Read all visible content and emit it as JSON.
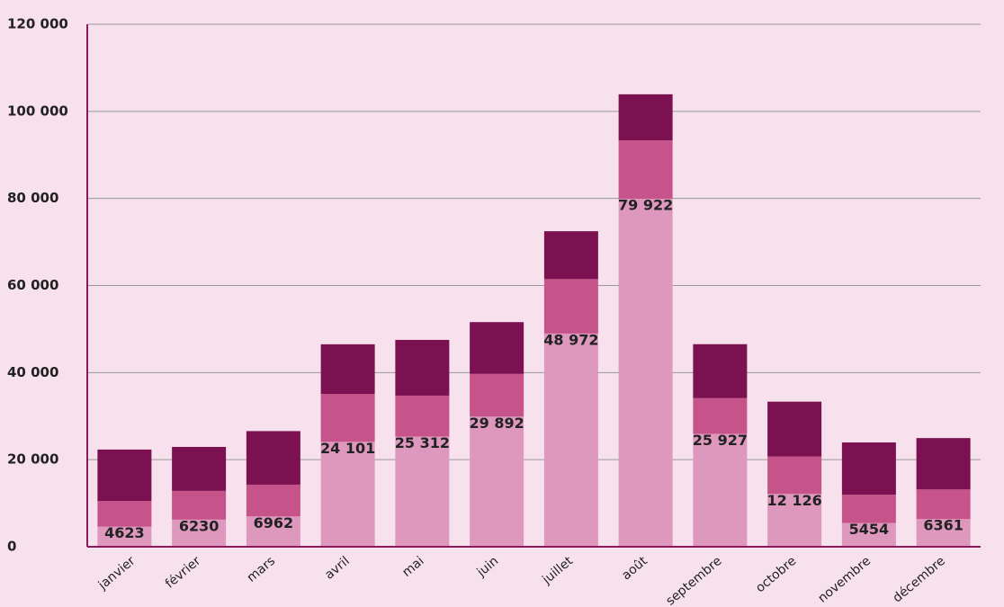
{
  "chart_data": {
    "type": "stacked_bar",
    "categories": [
      "janvier",
      "février",
      "mars",
      "avril",
      "mai",
      "juin",
      "juillet",
      "août",
      "septembre",
      "octobre",
      "novembre",
      "décembre"
    ],
    "series": [
      {
        "color": "#de98be",
        "values": [
          4623,
          6230,
          6962,
          24101,
          25312,
          29892,
          48972,
          79922,
          25927,
          12126,
          5454,
          6361
        ],
        "value_labels": [
          "4623",
          "6230",
          "6962",
          "24 101",
          "25 312",
          "29 892",
          "48 972",
          "79 922",
          "25 927",
          "12 126",
          "5454",
          "6361"
        ]
      },
      {
        "color": "#c6538a",
        "values": [
          5900,
          6600,
          7300,
          11000,
          9400,
          9800,
          12500,
          13400,
          8200,
          8600,
          6500,
          6800
        ]
      },
      {
        "color": "#7b1150",
        "values": [
          11800,
          10100,
          12300,
          11400,
          12800,
          11900,
          11000,
          10600,
          12400,
          12600,
          12000,
          11800
        ]
      }
    ],
    "ylim": [
      0,
      120000
    ],
    "yticks": [
      0,
      {
        "value": 20000,
        "label": "20 000"
      },
      {
        "value": 40000,
        "label": "40 000"
      },
      {
        "value": 60000,
        "label": "60 000"
      },
      {
        "value": 80000,
        "label": "80 000"
      },
      {
        "value": 100000,
        "label": "100 000"
      },
      {
        "value": 120000,
        "label": "120 000"
      }
    ],
    "grid": true
  }
}
